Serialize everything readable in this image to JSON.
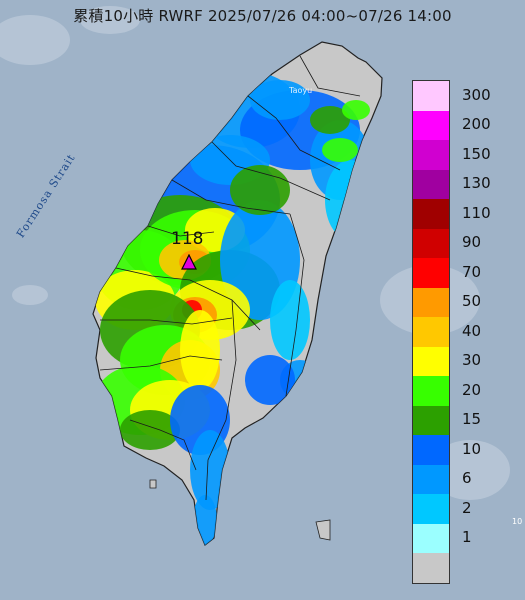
{
  "header": {
    "title": "累積10小時 RWRF 2025/07/26 04:00~07/26 14:00"
  },
  "map": {
    "strait_label": "Formosa Strait",
    "city_label": "Taoyu",
    "corner_mark": "10",
    "max_value_label": "118",
    "ocean_color": "#9fb3c8",
    "land_base_color": "#c8c8c8",
    "marker_color": "#e000e0"
  },
  "legend": {
    "unit_note": "",
    "classes": [
      {
        "label": "300",
        "color": "#ffc8ff"
      },
      {
        "label": "200",
        "color": "#ff00ff"
      },
      {
        "label": "150",
        "color": "#d000d0"
      },
      {
        "label": "130",
        "color": "#a000a0"
      },
      {
        "label": "110",
        "color": "#a00000"
      },
      {
        "label": "90",
        "color": "#d00000"
      },
      {
        "label": "70",
        "color": "#ff0000"
      },
      {
        "label": "50",
        "color": "#ff9a00"
      },
      {
        "label": "40",
        "color": "#ffc800"
      },
      {
        "label": "30",
        "color": "#ffff00"
      },
      {
        "label": "20",
        "color": "#37ff00"
      },
      {
        "label": "15",
        "color": "#2ca000"
      },
      {
        "label": "10",
        "color": "#0068ff"
      },
      {
        "label": "6",
        "color": "#0098ff"
      },
      {
        "label": "2",
        "color": "#00c8ff"
      },
      {
        "label": "1",
        "color": "#9bffff"
      },
      {
        "label": "",
        "color": "#c8c8c8"
      }
    ]
  }
}
